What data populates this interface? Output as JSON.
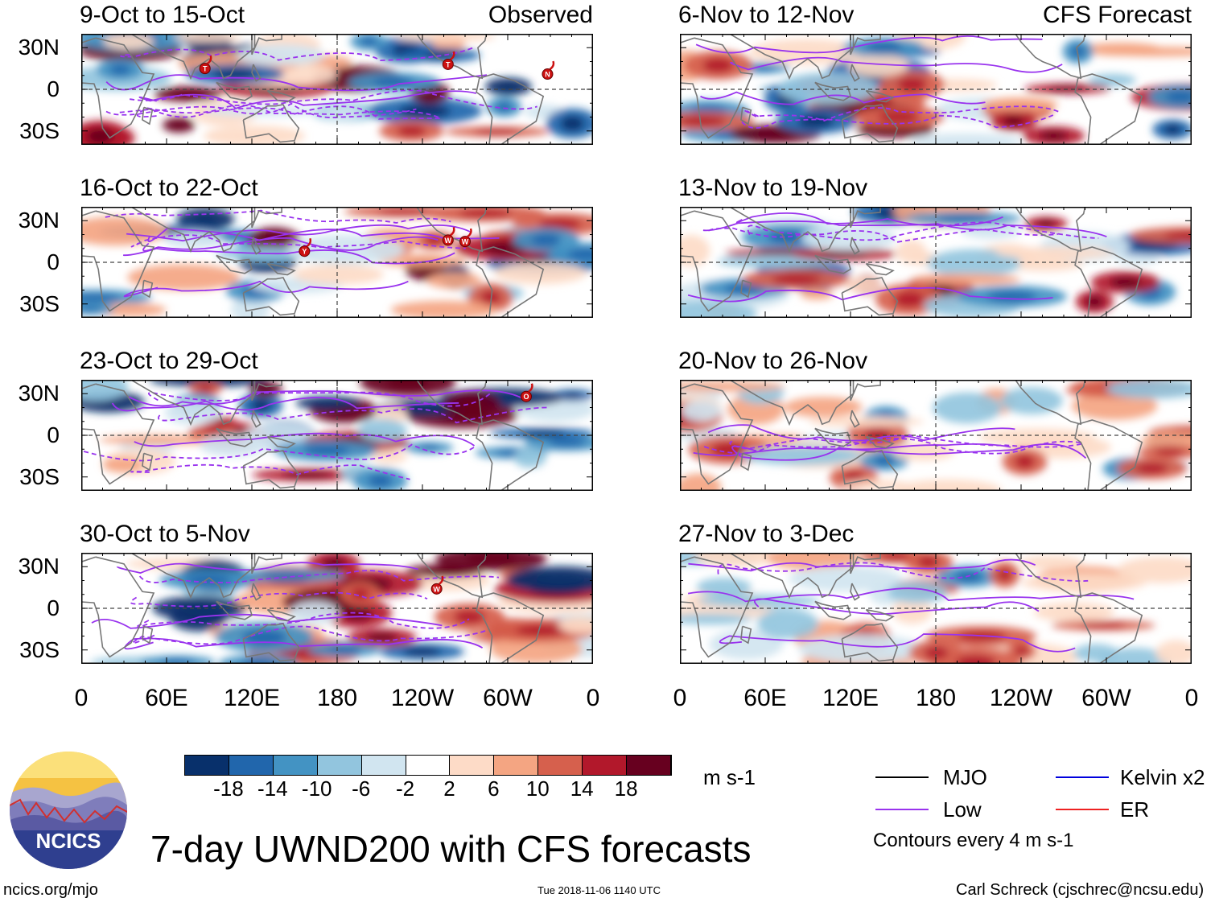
{
  "chart_data": {
    "type": "heatmap",
    "title": "7-day UWND200 with CFS forecasts",
    "variable": "UWND200",
    "units": "m s-1",
    "x_ticks": [
      "0",
      "60E",
      "120E",
      "180",
      "120W",
      "60W",
      "0"
    ],
    "y_ticks": [
      "30N",
      "0",
      "30S"
    ],
    "xlim": [
      0,
      360
    ],
    "ylim": [
      -40,
      40
    ],
    "panels": [
      {
        "title": "9-Oct to 15-Oct",
        "tag": "Observed",
        "kind": "observed",
        "seed": 11,
        "storms": [
          {
            "lon": 87,
            "lat": 15,
            "label": "T"
          },
          {
            "lon": 258,
            "lat": 18,
            "label": "T"
          },
          {
            "lon": 328,
            "lat": 11,
            "label": "N"
          }
        ]
      },
      {
        "title": "16-Oct to 22-Oct",
        "tag": "",
        "kind": "observed",
        "seed": 23,
        "storms": [
          {
            "lon": 157,
            "lat": 8,
            "label": "Y"
          },
          {
            "lon": 258,
            "lat": 16,
            "label": "W"
          },
          {
            "lon": 270,
            "lat": 15,
            "label": "W"
          }
        ]
      },
      {
        "title": "23-Oct to 29-Oct",
        "tag": "",
        "kind": "observed",
        "seed": 37,
        "storms": [
          {
            "lon": 313,
            "lat": 28,
            "label": "O"
          }
        ]
      },
      {
        "title": "30-Oct to 5-Nov",
        "tag": "",
        "kind": "observed",
        "seed": 41,
        "storms": [
          {
            "lon": 250,
            "lat": 14,
            "label": "W"
          }
        ]
      },
      {
        "title": "6-Nov to 12-Nov",
        "tag": "CFS Forecast",
        "kind": "forecast",
        "seed": 53,
        "storms": []
      },
      {
        "title": "13-Nov to 19-Nov",
        "tag": "",
        "kind": "forecast",
        "seed": 67,
        "storms": []
      },
      {
        "title": "20-Nov to 26-Nov",
        "tag": "",
        "kind": "forecast",
        "seed": 79,
        "storms": []
      },
      {
        "title": "27-Nov to 3-Dec",
        "tag": "",
        "kind": "forecast",
        "seed": 83,
        "storms": []
      }
    ],
    "colorbar": {
      "labels": [
        "-18",
        "-14",
        "-10",
        "-6",
        "-2",
        "2",
        "6",
        "10",
        "14",
        "18"
      ],
      "colors": [
        "#08306b",
        "#2166ac",
        "#4393c3",
        "#92c5de",
        "#d1e5f0",
        "#ffffff",
        "#fddbc7",
        "#f4a582",
        "#d6604d",
        "#b2182b",
        "#67001f"
      ],
      "units": "m s-1"
    },
    "legend": [
      {
        "label": "MJO",
        "color": "#000000"
      },
      {
        "label": "Kelvin x2",
        "color": "#0000dd"
      },
      {
        "label": "Low",
        "color": "#9933ee"
      },
      {
        "label": "ER",
        "color": "#ee2222"
      }
    ],
    "contour_note": "Contours every 4 m s-1"
  },
  "footer": {
    "logo_text": "NCICS",
    "url": "ncics.org/mjo",
    "timestamp": "Tue 2018-11-06 1140 UTC",
    "author": "Carl Schreck (cjschrec@ncsu.edu)"
  },
  "colors": {
    "continents": "#777777",
    "low_contour": "#9933ee"
  }
}
